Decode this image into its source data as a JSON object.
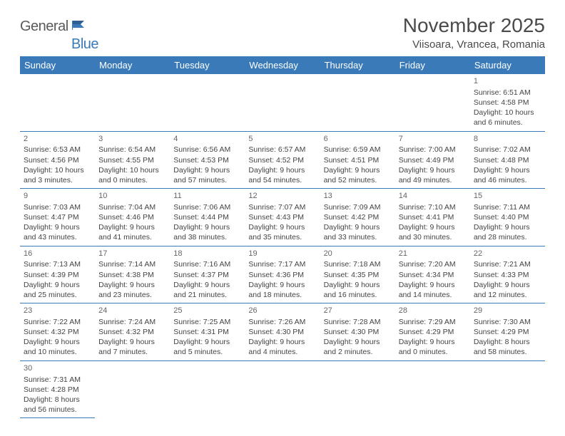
{
  "logo": {
    "text_a": "General",
    "text_b": "Blue"
  },
  "title": "November 2025",
  "location": "Viisoara, Vrancea, Romania",
  "colors": {
    "header_bg": "#3a7ab8",
    "header_fg": "#ffffff",
    "border": "#3a7ab8",
    "text": "#444444",
    "logo_gray": "#5a5a5a",
    "logo_blue": "#3a7ab8"
  },
  "day_headers": [
    "Sunday",
    "Monday",
    "Tuesday",
    "Wednesday",
    "Thursday",
    "Friday",
    "Saturday"
  ],
  "weeks": [
    [
      null,
      null,
      null,
      null,
      null,
      null,
      {
        "n": "1",
        "sr": "Sunrise: 6:51 AM",
        "ss": "Sunset: 4:58 PM",
        "dl1": "Daylight: 10 hours",
        "dl2": "and 6 minutes."
      }
    ],
    [
      {
        "n": "2",
        "sr": "Sunrise: 6:53 AM",
        "ss": "Sunset: 4:56 PM",
        "dl1": "Daylight: 10 hours",
        "dl2": "and 3 minutes."
      },
      {
        "n": "3",
        "sr": "Sunrise: 6:54 AM",
        "ss": "Sunset: 4:55 PM",
        "dl1": "Daylight: 10 hours",
        "dl2": "and 0 minutes."
      },
      {
        "n": "4",
        "sr": "Sunrise: 6:56 AM",
        "ss": "Sunset: 4:53 PM",
        "dl1": "Daylight: 9 hours",
        "dl2": "and 57 minutes."
      },
      {
        "n": "5",
        "sr": "Sunrise: 6:57 AM",
        "ss": "Sunset: 4:52 PM",
        "dl1": "Daylight: 9 hours",
        "dl2": "and 54 minutes."
      },
      {
        "n": "6",
        "sr": "Sunrise: 6:59 AM",
        "ss": "Sunset: 4:51 PM",
        "dl1": "Daylight: 9 hours",
        "dl2": "and 52 minutes."
      },
      {
        "n": "7",
        "sr": "Sunrise: 7:00 AM",
        "ss": "Sunset: 4:49 PM",
        "dl1": "Daylight: 9 hours",
        "dl2": "and 49 minutes."
      },
      {
        "n": "8",
        "sr": "Sunrise: 7:02 AM",
        "ss": "Sunset: 4:48 PM",
        "dl1": "Daylight: 9 hours",
        "dl2": "and 46 minutes."
      }
    ],
    [
      {
        "n": "9",
        "sr": "Sunrise: 7:03 AM",
        "ss": "Sunset: 4:47 PM",
        "dl1": "Daylight: 9 hours",
        "dl2": "and 43 minutes."
      },
      {
        "n": "10",
        "sr": "Sunrise: 7:04 AM",
        "ss": "Sunset: 4:46 PM",
        "dl1": "Daylight: 9 hours",
        "dl2": "and 41 minutes."
      },
      {
        "n": "11",
        "sr": "Sunrise: 7:06 AM",
        "ss": "Sunset: 4:44 PM",
        "dl1": "Daylight: 9 hours",
        "dl2": "and 38 minutes."
      },
      {
        "n": "12",
        "sr": "Sunrise: 7:07 AM",
        "ss": "Sunset: 4:43 PM",
        "dl1": "Daylight: 9 hours",
        "dl2": "and 35 minutes."
      },
      {
        "n": "13",
        "sr": "Sunrise: 7:09 AM",
        "ss": "Sunset: 4:42 PM",
        "dl1": "Daylight: 9 hours",
        "dl2": "and 33 minutes."
      },
      {
        "n": "14",
        "sr": "Sunrise: 7:10 AM",
        "ss": "Sunset: 4:41 PM",
        "dl1": "Daylight: 9 hours",
        "dl2": "and 30 minutes."
      },
      {
        "n": "15",
        "sr": "Sunrise: 7:11 AM",
        "ss": "Sunset: 4:40 PM",
        "dl1": "Daylight: 9 hours",
        "dl2": "and 28 minutes."
      }
    ],
    [
      {
        "n": "16",
        "sr": "Sunrise: 7:13 AM",
        "ss": "Sunset: 4:39 PM",
        "dl1": "Daylight: 9 hours",
        "dl2": "and 25 minutes."
      },
      {
        "n": "17",
        "sr": "Sunrise: 7:14 AM",
        "ss": "Sunset: 4:38 PM",
        "dl1": "Daylight: 9 hours",
        "dl2": "and 23 minutes."
      },
      {
        "n": "18",
        "sr": "Sunrise: 7:16 AM",
        "ss": "Sunset: 4:37 PM",
        "dl1": "Daylight: 9 hours",
        "dl2": "and 21 minutes."
      },
      {
        "n": "19",
        "sr": "Sunrise: 7:17 AM",
        "ss": "Sunset: 4:36 PM",
        "dl1": "Daylight: 9 hours",
        "dl2": "and 18 minutes."
      },
      {
        "n": "20",
        "sr": "Sunrise: 7:18 AM",
        "ss": "Sunset: 4:35 PM",
        "dl1": "Daylight: 9 hours",
        "dl2": "and 16 minutes."
      },
      {
        "n": "21",
        "sr": "Sunrise: 7:20 AM",
        "ss": "Sunset: 4:34 PM",
        "dl1": "Daylight: 9 hours",
        "dl2": "and 14 minutes."
      },
      {
        "n": "22",
        "sr": "Sunrise: 7:21 AM",
        "ss": "Sunset: 4:33 PM",
        "dl1": "Daylight: 9 hours",
        "dl2": "and 12 minutes."
      }
    ],
    [
      {
        "n": "23",
        "sr": "Sunrise: 7:22 AM",
        "ss": "Sunset: 4:32 PM",
        "dl1": "Daylight: 9 hours",
        "dl2": "and 10 minutes."
      },
      {
        "n": "24",
        "sr": "Sunrise: 7:24 AM",
        "ss": "Sunset: 4:32 PM",
        "dl1": "Daylight: 9 hours",
        "dl2": "and 7 minutes."
      },
      {
        "n": "25",
        "sr": "Sunrise: 7:25 AM",
        "ss": "Sunset: 4:31 PM",
        "dl1": "Daylight: 9 hours",
        "dl2": "and 5 minutes."
      },
      {
        "n": "26",
        "sr": "Sunrise: 7:26 AM",
        "ss": "Sunset: 4:30 PM",
        "dl1": "Daylight: 9 hours",
        "dl2": "and 4 minutes."
      },
      {
        "n": "27",
        "sr": "Sunrise: 7:28 AM",
        "ss": "Sunset: 4:30 PM",
        "dl1": "Daylight: 9 hours",
        "dl2": "and 2 minutes."
      },
      {
        "n": "28",
        "sr": "Sunrise: 7:29 AM",
        "ss": "Sunset: 4:29 PM",
        "dl1": "Daylight: 9 hours",
        "dl2": "and 0 minutes."
      },
      {
        "n": "29",
        "sr": "Sunrise: 7:30 AM",
        "ss": "Sunset: 4:29 PM",
        "dl1": "Daylight: 8 hours",
        "dl2": "and 58 minutes."
      }
    ],
    [
      {
        "n": "30",
        "sr": "Sunrise: 7:31 AM",
        "ss": "Sunset: 4:28 PM",
        "dl1": "Daylight: 8 hours",
        "dl2": "and 56 minutes."
      },
      null,
      null,
      null,
      null,
      null,
      null
    ]
  ]
}
